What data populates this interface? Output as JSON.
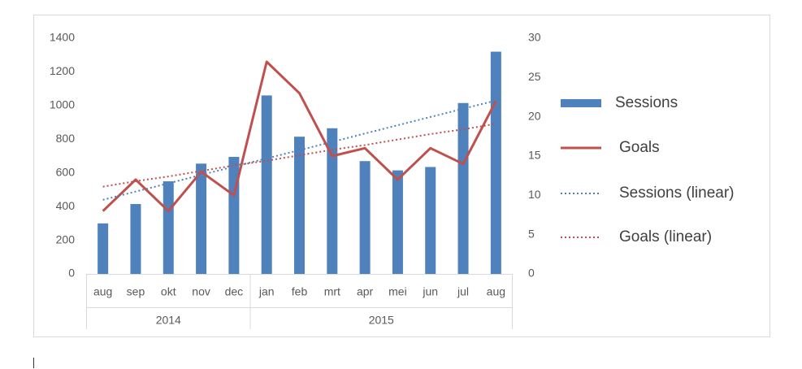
{
  "chart_data": {
    "type": "combo",
    "categories": [
      "aug",
      "sep",
      "okt",
      "nov",
      "dec",
      "jan",
      "feb",
      "mrt",
      "apr",
      "mei",
      "jun",
      "jul",
      "aug"
    ],
    "category_groups": [
      {
        "label": "2014",
        "span": 5
      },
      {
        "label": "2015",
        "span": 8
      }
    ],
    "series": [
      {
        "name": "Sessions",
        "type": "bar",
        "color": "#4f81bd",
        "axis": "y",
        "values": [
          300,
          415,
          550,
          655,
          695,
          1060,
          815,
          865,
          670,
          615,
          635,
          1015,
          1320
        ]
      },
      {
        "name": "Goals",
        "type": "line",
        "color": "#c0504d",
        "axis": "y2",
        "values": [
          8,
          12,
          8,
          13,
          10,
          27,
          23,
          15,
          16,
          12,
          16,
          14,
          22
        ]
      },
      {
        "name": "Sessions (linear)",
        "type": "line",
        "style": "dotted",
        "color": "#4f81bd",
        "axis": "y",
        "values": [
          440,
          489,
          538,
          588,
          637,
          686,
          735,
          784,
          834,
          883,
          932,
          981,
          1030
        ]
      },
      {
        "name": "Goals (linear)",
        "type": "line",
        "style": "dotted",
        "color": "#c0504d",
        "axis": "y2",
        "values": [
          11.1,
          11.8,
          12.4,
          13.1,
          13.8,
          14.4,
          15.1,
          15.8,
          16.4,
          17.1,
          17.8,
          18.4,
          19.1
        ]
      }
    ],
    "ylim": [
      0,
      1400
    ],
    "yticks": [
      0,
      200,
      400,
      600,
      800,
      1000,
      1200,
      1400
    ],
    "y2lim": [
      0,
      30
    ],
    "y2ticks": [
      0,
      5,
      10,
      15,
      20,
      25,
      30
    ],
    "legend": "right",
    "grid": false
  }
}
